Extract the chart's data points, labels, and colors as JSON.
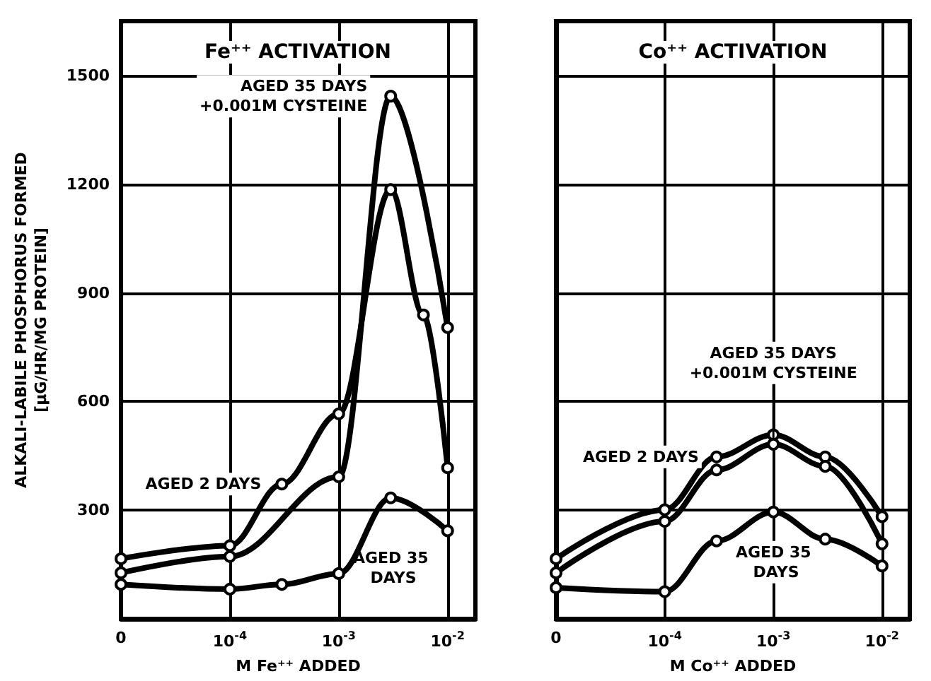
{
  "chart_data": [
    {
      "type": "line",
      "title": "Fe⁺⁺ ACTIVATION",
      "xlabel": "M Fe⁺⁺ ADDED",
      "ylabel": "ALKALI-LABILE PHOSPHORUS FORMED\n[μG/HR/MG PROTEIN]",
      "x": [
        1e-05,
        0.0001,
        0.0003,
        0.001,
        0.003,
        0.006,
        0.01
      ],
      "series": [
        {
          "name": "AGED 2 DAYS",
          "color": "#000000",
          "values": [
            166,
            202,
            372,
            566,
            1185,
            839,
            417
          ]
        },
        {
          "name": "AGED 35 DAYS\n+0.001M CYSTEINE",
          "color": "#000000",
          "values": [
            127,
            172,
            null,
            392,
            1443,
            null,
            804
          ]
        },
        {
          "name": "AGED 35 DAYS",
          "color": "#000000",
          "values": [
            95,
            82,
            95,
            125,
            334,
            null,
            243
          ]
        }
      ],
      "xlim": [
        1e-05,
        0.018
      ],
      "ylim": [
        0,
        1650
      ],
      "xticks": [
        {
          "value": 1e-05,
          "label": "0"
        },
        {
          "value": 0.0001,
          "label": "10$^{-4}$"
        },
        {
          "value": 0.001,
          "label": "10$^{-3}$"
        },
        {
          "value": 0.01,
          "label": "10$^{-2}$"
        }
      ],
      "yticks": [
        300,
        600,
        900,
        1200,
        1500
      ],
      "log": "x",
      "grid": true,
      "marker": "circle"
    },
    {
      "type": "line",
      "title": "Co⁺⁺ ACTIVATION",
      "xlabel": "M Co⁺⁺ ADDED",
      "x": [
        1e-05,
        0.0001,
        0.0003,
        0.001,
        0.003,
        0.01
      ],
      "series": [
        {
          "name": "AGED 2 DAYS",
          "color": "#000000",
          "values": [
            166,
            301,
            447,
            508,
            447,
            282
          ]
        },
        {
          "name": "AGED 35 DAYS\n+0.001M CYSTEINE",
          "color": "#000000",
          "values": [
            127,
            269,
            411,
            482,
            421,
            207
          ]
        },
        {
          "name": "AGED 35 DAYS",
          "color": "#000000",
          "values": [
            86,
            75,
            215,
            295,
            220,
            146
          ]
        }
      ],
      "xlim": [
        1e-05,
        0.018
      ],
      "ylim": [
        0,
        1650
      ],
      "xticks": [
        {
          "value": 1e-05,
          "label": "0"
        },
        {
          "value": 0.0001,
          "label": "10$^{-4}$"
        },
        {
          "value": 0.001,
          "label": "10$^{-3}$"
        },
        {
          "value": 0.01,
          "label": "10$^{-2}$"
        }
      ],
      "yticks": [
        300,
        600,
        900,
        1200,
        1500
      ],
      "log": "x",
      "grid": true,
      "marker": "circle",
      "tick_labels": "x"
    }
  ]
}
